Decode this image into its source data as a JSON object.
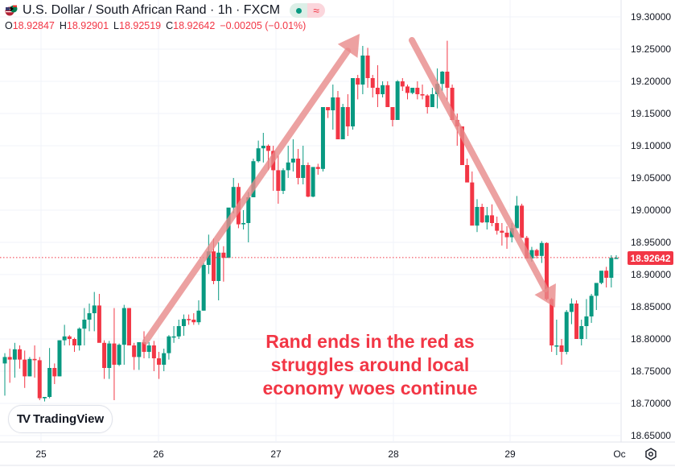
{
  "header": {
    "symbol_title": "U.S. Dollar / South African Rand · 1h · FXCM",
    "flag_icon": "usd-zar-flag-icon",
    "status_icons": [
      "market-open-dot-icon",
      "delayed-data-wave-icon"
    ],
    "wave_glyph": "≈",
    "ohlc": {
      "o_label": "O",
      "o_value": "18.92847",
      "h_label": "H",
      "h_value": "18.92901",
      "l_label": "L",
      "l_value": "18.92519",
      "c_label": "C",
      "c_value": "18.92642",
      "change": "−0.00205 (−0.01%)"
    }
  },
  "annotation": {
    "text_line1": "Rand ends in the red as",
    "text_line2": "struggles around local",
    "text_line3": "economy woes continue"
  },
  "branding": {
    "logo_text": "TradingView",
    "logo_mark": "TV"
  },
  "price_tag": {
    "value": "18.92642",
    "color": "#f23645"
  },
  "colors": {
    "up": "#089981",
    "down": "#f23645",
    "arrow": "#e88a8a",
    "grid": "#f0f3fa",
    "text": "#131722"
  },
  "chart_data": {
    "type": "candlestick",
    "title": "U.S. Dollar / South African Rand · 1h · FXCM",
    "xlabel": "",
    "ylabel": "",
    "x_ticks": [
      "25",
      "26",
      "27",
      "28",
      "29",
      "Oct"
    ],
    "y_ticks": [
      "19.30000",
      "19.25000",
      "19.20000",
      "19.15000",
      "19.10000",
      "19.05000",
      "19.00000",
      "18.95000",
      "18.90000",
      "18.85000",
      "18.80000",
      "18.75000",
      "18.70000",
      "18.65000"
    ],
    "ylim": [
      18.63,
      19.33
    ],
    "last_price": 18.92642,
    "grid": true,
    "arrows": [
      {
        "from": [
          181,
          424
        ],
        "to": [
          447,
          42
        ],
        "direction": "up"
      },
      {
        "from": [
          512,
          50
        ],
        "to": [
          690,
          382
        ],
        "direction": "down"
      }
    ],
    "candles": [
      [
        18.762,
        18.778,
        18.712,
        18.772
      ],
      [
        18.772,
        18.785,
        18.732,
        18.768
      ],
      [
        18.768,
        18.794,
        18.74,
        18.784
      ],
      [
        18.784,
        18.79,
        18.754,
        18.768
      ],
      [
        18.768,
        18.782,
        18.724,
        18.742
      ],
      [
        18.742,
        18.772,
        18.742,
        18.769
      ],
      [
        18.769,
        18.79,
        18.74,
        18.767
      ],
      [
        18.767,
        18.772,
        18.705,
        18.708
      ],
      [
        18.708,
        18.71,
        18.703,
        18.71
      ],
      [
        18.71,
        18.786,
        18.708,
        18.755
      ],
      [
        18.755,
        18.762,
        18.73,
        18.742
      ],
      [
        18.742,
        18.798,
        18.742,
        18.798
      ],
      [
        18.798,
        18.822,
        18.79,
        18.804
      ],
      [
        18.804,
        18.806,
        18.79,
        18.8
      ],
      [
        18.8,
        18.802,
        18.78,
        18.79
      ],
      [
        18.79,
        18.818,
        18.782,
        18.816
      ],
      [
        18.816,
        18.848,
        18.79,
        18.83
      ],
      [
        18.83,
        18.855,
        18.812,
        18.84
      ],
      [
        18.84,
        18.873,
        18.812,
        18.852
      ],
      [
        18.852,
        18.87,
        18.83,
        18.794
      ],
      [
        18.794,
        18.798,
        18.738,
        18.755
      ],
      [
        18.755,
        18.797,
        18.738,
        18.793
      ],
      [
        18.793,
        18.848,
        18.705,
        18.76
      ],
      [
        18.76,
        18.793,
        18.758,
        18.791
      ],
      [
        18.791,
        18.853,
        18.76,
        18.848
      ],
      [
        18.848,
        18.848,
        18.798,
        18.79
      ],
      [
        18.79,
        18.794,
        18.752,
        18.772
      ],
      [
        18.772,
        18.795,
        18.752,
        18.795
      ],
      [
        18.795,
        18.812,
        18.77,
        18.78
      ],
      [
        18.78,
        18.795,
        18.77,
        18.79
      ],
      [
        18.79,
        18.797,
        18.75,
        18.77
      ],
      [
        18.77,
        18.78,
        18.738,
        18.76
      ],
      [
        18.76,
        18.785,
        18.75,
        18.778
      ],
      [
        18.778,
        18.806,
        18.768,
        18.804
      ],
      [
        18.804,
        18.82,
        18.794,
        18.804
      ],
      [
        18.804,
        18.83,
        18.8,
        18.82
      ],
      [
        18.82,
        18.838,
        18.805,
        18.831
      ],
      [
        18.831,
        18.838,
        18.822,
        18.83
      ],
      [
        18.83,
        18.84,
        18.822,
        18.826
      ],
      [
        18.826,
        18.86,
        18.822,
        18.844
      ],
      [
        18.844,
        18.918,
        18.844,
        18.915
      ],
      [
        18.915,
        18.962,
        18.901,
        18.936
      ],
      [
        18.936,
        18.956,
        18.885,
        18.89
      ],
      [
        18.89,
        18.95,
        18.86,
        18.934
      ],
      [
        18.934,
        18.944,
        18.889,
        18.926
      ],
      [
        18.926,
        18.985,
        18.926,
        19.004
      ],
      [
        19.004,
        19.05,
        18.995,
        19.036
      ],
      [
        19.036,
        19.042,
        18.972,
        18.978
      ],
      [
        18.978,
        19.0,
        18.97,
        18.98
      ],
      [
        18.98,
        19.028,
        18.95,
        19.02
      ],
      [
        19.02,
        19.08,
        19.02,
        19.076
      ],
      [
        19.076,
        19.108,
        19.074,
        19.096
      ],
      [
        19.096,
        19.12,
        19.074,
        19.1
      ],
      [
        19.1,
        19.102,
        19.062,
        19.092
      ],
      [
        19.092,
        19.1,
        19.03,
        19.062
      ],
      [
        19.062,
        19.085,
        19.01,
        19.03
      ],
      [
        19.03,
        19.065,
        19.025,
        19.062
      ],
      [
        19.062,
        19.1,
        19.05,
        19.074
      ],
      [
        19.074,
        19.11,
        19.06,
        19.08
      ],
      [
        19.08,
        19.095,
        19.04,
        19.05
      ],
      [
        19.05,
        19.1,
        19.04,
        19.07
      ],
      [
        19.07,
        19.074,
        19.02,
        19.021
      ],
      [
        19.021,
        19.065,
        19.02,
        19.067
      ],
      [
        19.067,
        19.072,
        19.055,
        19.064
      ],
      [
        19.064,
        19.16,
        19.06,
        19.16
      ],
      [
        19.16,
        19.16,
        19.143,
        19.155
      ],
      [
        19.155,
        19.195,
        19.125,
        19.175
      ],
      [
        19.175,
        19.185,
        19.11,
        19.11
      ],
      [
        19.11,
        19.165,
        19.11,
        19.16
      ],
      [
        19.16,
        19.18,
        19.115,
        19.13
      ],
      [
        19.13,
        19.205,
        19.125,
        19.205
      ],
      [
        19.205,
        19.21,
        19.172,
        19.195
      ],
      [
        19.195,
        19.255,
        19.18,
        19.24
      ],
      [
        19.24,
        19.252,
        19.19,
        19.205
      ],
      [
        19.205,
        19.21,
        19.175,
        19.19
      ],
      [
        19.19,
        19.225,
        19.16,
        19.18
      ],
      [
        19.18,
        19.2,
        19.175,
        19.194
      ],
      [
        19.194,
        19.2,
        19.16,
        19.16
      ],
      [
        19.16,
        19.16,
        19.13,
        19.14
      ],
      [
        19.14,
        19.202,
        19.14,
        19.2
      ],
      [
        19.2,
        19.205,
        19.185,
        19.192
      ],
      [
        19.192,
        19.195,
        19.172,
        19.182
      ],
      [
        19.182,
        19.19,
        19.18,
        19.19
      ],
      [
        19.19,
        19.2,
        19.172,
        19.18
      ],
      [
        19.18,
        19.195,
        19.172,
        19.178
      ],
      [
        19.178,
        19.18,
        19.15,
        19.16
      ],
      [
        19.16,
        19.19,
        19.16,
        19.18
      ],
      [
        19.18,
        19.22,
        19.158,
        19.196
      ],
      [
        19.196,
        19.216,
        19.185,
        19.215
      ],
      [
        19.215,
        19.263,
        19.17,
        19.19
      ],
      [
        19.19,
        19.195,
        19.14,
        19.14
      ],
      [
        19.14,
        19.15,
        19.1,
        19.13
      ],
      [
        19.13,
        19.13,
        19.07,
        19.07
      ],
      [
        19.07,
        19.08,
        19.05,
        19.043
      ],
      [
        19.043,
        19.06,
        18.98,
        18.976
      ],
      [
        18.976,
        19.017,
        18.966,
        19.005
      ],
      [
        19.005,
        19.01,
        18.98,
        18.981
      ],
      [
        18.981,
        19.005,
        18.97,
        18.992
      ],
      [
        18.992,
        19.009,
        18.975,
        18.98
      ],
      [
        18.98,
        18.99,
        18.962,
        18.968
      ],
      [
        18.968,
        18.98,
        18.945,
        18.965
      ],
      [
        18.965,
        18.975,
        18.94,
        18.958
      ],
      [
        18.958,
        18.98,
        18.95,
        18.972
      ],
      [
        18.972,
        19.022,
        18.972,
        19.007
      ],
      [
        19.007,
        19.01,
        18.958,
        18.957
      ],
      [
        18.957,
        18.96,
        18.93,
        18.925
      ],
      [
        18.925,
        18.943,
        18.92,
        18.938
      ],
      [
        18.938,
        18.94,
        18.925,
        18.929
      ],
      [
        18.929,
        18.952,
        18.918,
        18.949
      ],
      [
        18.949,
        18.95,
        18.86,
        18.862
      ],
      [
        18.862,
        18.864,
        18.78,
        18.79
      ],
      [
        18.79,
        18.83,
        18.775,
        18.79
      ],
      [
        18.79,
        18.8,
        18.76,
        18.78
      ],
      [
        18.78,
        18.845,
        18.776,
        18.842
      ],
      [
        18.842,
        18.863,
        18.823,
        18.855
      ],
      [
        18.855,
        18.86,
        18.8,
        18.8
      ],
      [
        18.8,
        18.83,
        18.79,
        18.82
      ],
      [
        18.82,
        18.862,
        18.8,
        18.835
      ],
      [
        18.835,
        18.87,
        18.825,
        18.867
      ],
      [
        18.867,
        18.878,
        18.845,
        18.887
      ],
      [
        18.887,
        18.905,
        18.885,
        18.906
      ],
      [
        18.906,
        18.912,
        18.88,
        18.895
      ],
      [
        18.895,
        18.93,
        18.88,
        18.926
      ],
      [
        18.926,
        18.93,
        18.925,
        18.926
      ]
    ]
  }
}
